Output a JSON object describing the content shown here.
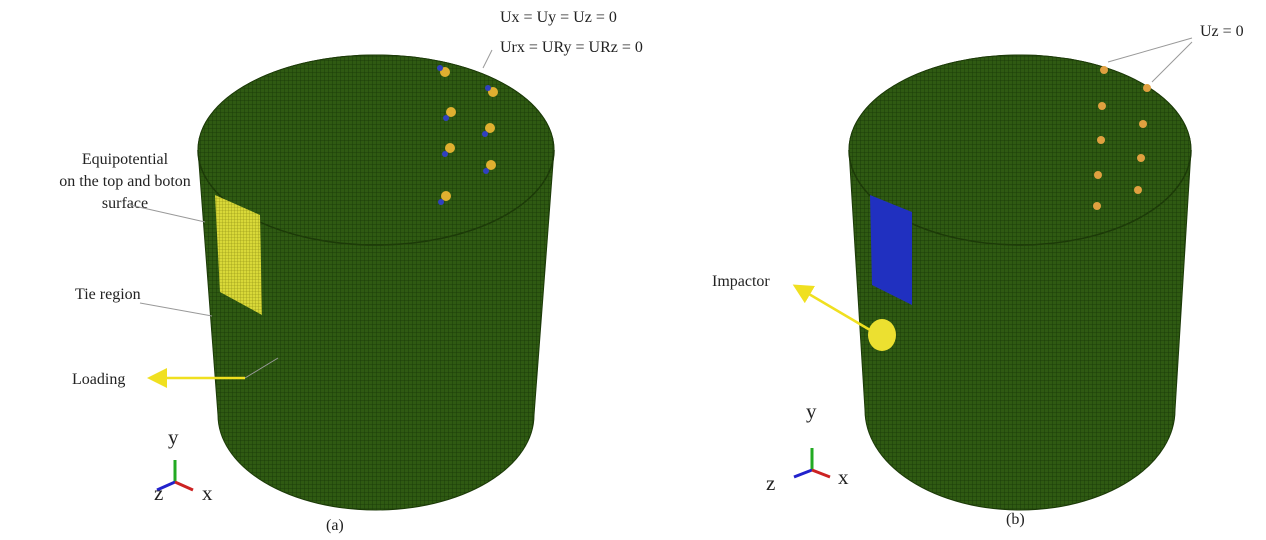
{
  "panels": [
    {
      "label": "(a)",
      "constraint_1": "Ux = Uy = Uz = 0",
      "constraint_2": "Urx = URy = URz = 0",
      "equipotential": [
        "Equipotential",
        "on the top and boton",
        "surface"
      ],
      "tie_region": "Tie region",
      "loading": "Loading",
      "axes": {
        "y": "y",
        "z": "z",
        "x": "x"
      }
    },
    {
      "label": "(b)",
      "constraint": "Uz = 0",
      "impactor": "Impactor",
      "axes": {
        "y": "y",
        "z": "z",
        "x": "x"
      }
    }
  ]
}
